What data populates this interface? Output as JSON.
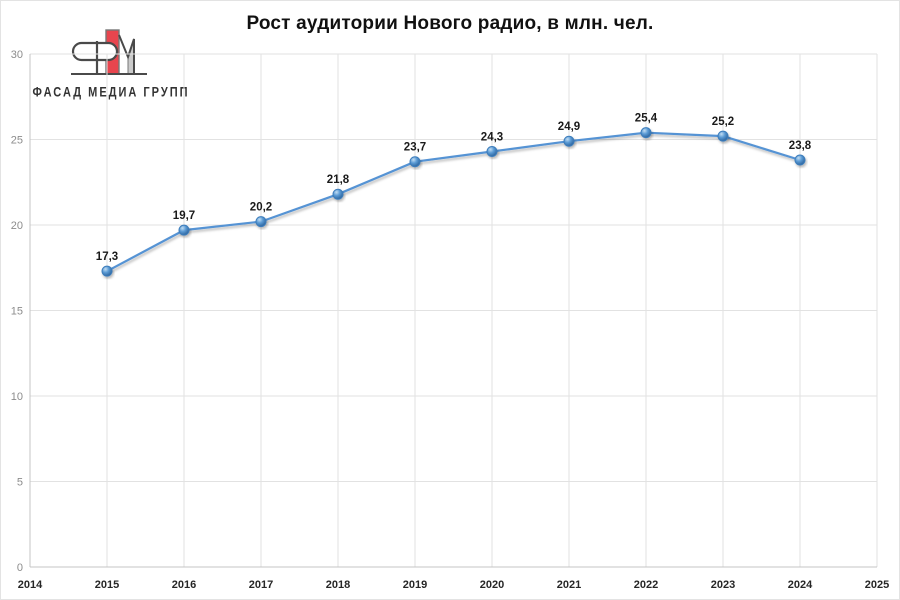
{
  "logo": {
    "text": "ФАСАД МЕДИА ГРУПП",
    "mark_red": "#e8454e",
    "mark_gray": "#cbcbcb",
    "mark_line": "#4a4a4a"
  },
  "chart_data": {
    "type": "line",
    "title": "Рост аудитории Нового радио, в млн. чел.",
    "x": [
      2015,
      2016,
      2017,
      2018,
      2019,
      2020,
      2021,
      2022,
      2023,
      2024
    ],
    "values": [
      17.3,
      19.7,
      20.2,
      21.8,
      23.7,
      24.3,
      24.9,
      25.4,
      25.2,
      23.8
    ],
    "point_labels": [
      "17,3",
      "19,7",
      "20,2",
      "21,8",
      "23,7",
      "24,3",
      "24,9",
      "25,4",
      "25,2",
      "23,8"
    ],
    "xlabel": "",
    "ylabel": "",
    "xlim": [
      2014,
      2025
    ],
    "ylim": [
      0,
      30
    ],
    "xticks": [
      2014,
      2015,
      2016,
      2017,
      2018,
      2019,
      2020,
      2021,
      2022,
      2023,
      2024,
      2025
    ],
    "yticks": [
      0,
      5,
      10,
      15,
      20,
      25,
      30
    ],
    "grid": true,
    "legend_position": "none",
    "line_color": "#5593d4",
    "marker_edge_color": "#3c7dbc",
    "marker_fill_color": "#3f85c6",
    "grid_color": "#e2e2e2",
    "axis_color": "#c4c4c4"
  }
}
